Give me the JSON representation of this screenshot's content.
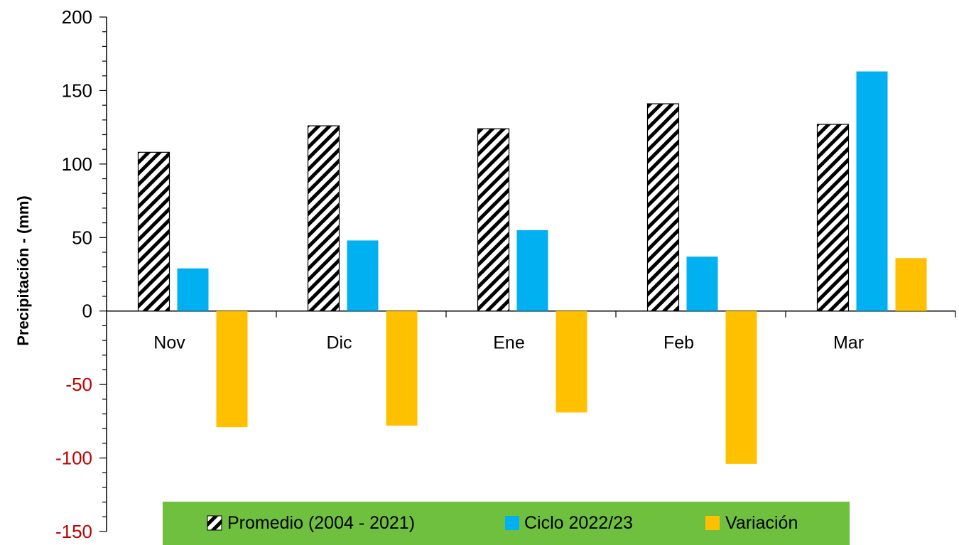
{
  "chart_data": {
    "type": "bar",
    "categories": [
      "Nov",
      "Dic",
      "Ene",
      "Feb",
      "Mar"
    ],
    "series": [
      {
        "name": "Promedio (2004 - 2021)",
        "values": [
          108,
          126,
          124,
          141,
          127
        ],
        "color": "#000000",
        "pattern": "diagonal-hatch"
      },
      {
        "name": "Ciclo 2022/23",
        "values": [
          29,
          48,
          55,
          37,
          163
        ],
        "color": "#00B0F0"
      },
      {
        "name": "Variación",
        "values": [
          -79,
          -78,
          -69,
          -104,
          36
        ],
        "color": "#FFC000"
      }
    ],
    "ylabel": "Precipitación - (mm)",
    "ylim": [
      -150,
      200
    ],
    "yticks": [
      200,
      150,
      100,
      50,
      0,
      -50,
      -100,
      -150
    ],
    "ytick_colors": {
      "positive": "#000000",
      "negative": "#C00000"
    },
    "grid": false,
    "legend": {
      "placement": "bottom-center",
      "background": "#70C040"
    }
  }
}
